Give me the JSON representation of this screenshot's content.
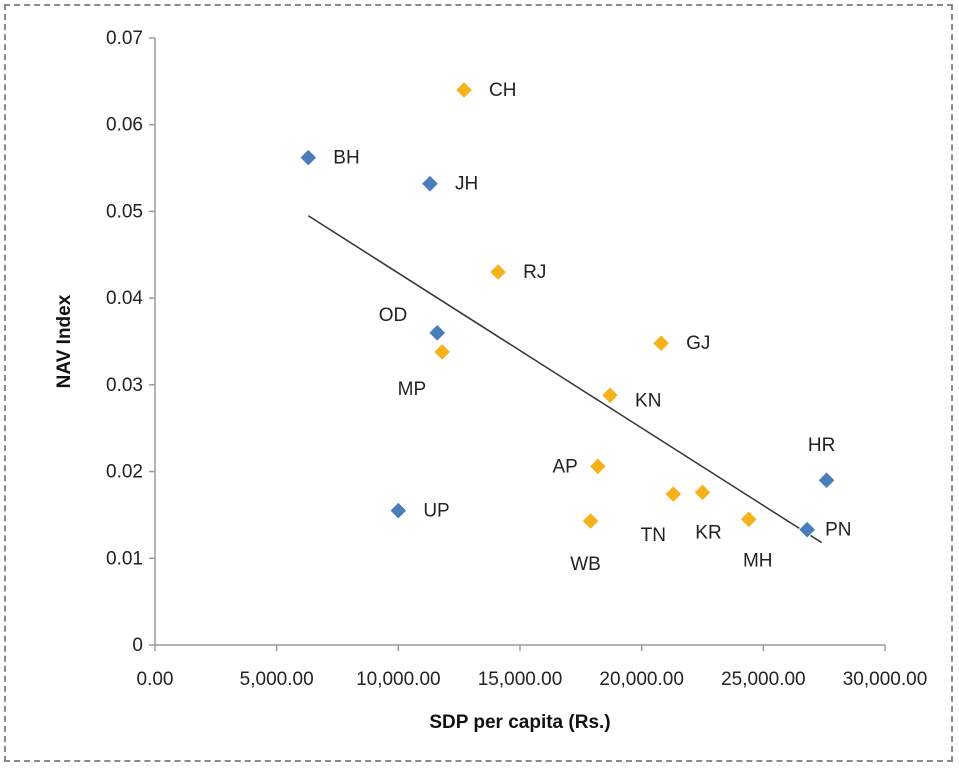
{
  "chart_data": {
    "type": "scatter",
    "title": "",
    "xlabel": "SDP per capita (Rs.)",
    "ylabel": "NAV Index",
    "xlim": [
      0,
      30000
    ],
    "ylim": [
      0,
      0.07
    ],
    "x_ticks": [
      "0.00",
      "5,000.00",
      "10,000.00",
      "15,000.00",
      "20,000.00",
      "25,000.00",
      "30,000.00"
    ],
    "y_ticks": [
      "0",
      "0.01",
      "0.02",
      "0.03",
      "0.04",
      "0.05",
      "0.06",
      "0.07"
    ],
    "grid": false,
    "legend": "none",
    "colors": {
      "blue": "#4a7ebb",
      "orange": "#f5b21a",
      "trend": "#333333"
    },
    "points": [
      {
        "label": "CH",
        "x": 12700,
        "y": 0.064,
        "color": "orange"
      },
      {
        "label": "BH",
        "x": 6300,
        "y": 0.0562,
        "color": "blue"
      },
      {
        "label": "JH",
        "x": 11300,
        "y": 0.0532,
        "color": "blue"
      },
      {
        "label": "RJ",
        "x": 14100,
        "y": 0.043,
        "color": "orange"
      },
      {
        "label": "OD",
        "x": 11600,
        "y": 0.036,
        "color": "blue"
      },
      {
        "label": "MP",
        "x": 11800,
        "y": 0.0338,
        "color": "orange"
      },
      {
        "label": "GJ",
        "x": 20800,
        "y": 0.0348,
        "color": "orange"
      },
      {
        "label": "KN",
        "x": 18700,
        "y": 0.0288,
        "color": "orange"
      },
      {
        "label": "AP",
        "x": 18200,
        "y": 0.0206,
        "color": "orange"
      },
      {
        "label": "HR",
        "x": 27600,
        "y": 0.019,
        "color": "blue"
      },
      {
        "label": "UP",
        "x": 10000,
        "y": 0.0155,
        "color": "blue"
      },
      {
        "label": "WB",
        "x": 17900,
        "y": 0.0143,
        "color": "orange"
      },
      {
        "label": "TN",
        "x": 21300,
        "y": 0.0174,
        "color": "orange"
      },
      {
        "label": "KR",
        "x": 22500,
        "y": 0.0176,
        "color": "orange"
      },
      {
        "label": "MH",
        "x": 24400,
        "y": 0.0145,
        "color": "orange"
      },
      {
        "label": "PN",
        "x": 26800,
        "y": 0.0133,
        "color": "blue"
      }
    ],
    "trendline": {
      "x": [
        6300,
        27400
      ],
      "y": [
        0.0495,
        0.0118
      ]
    }
  }
}
